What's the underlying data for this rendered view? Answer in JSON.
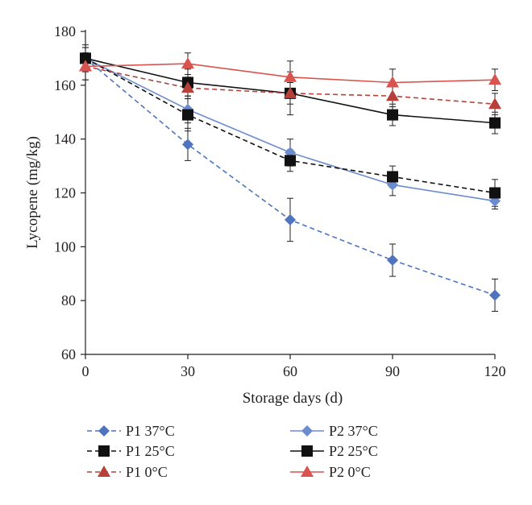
{
  "chart_data": {
    "type": "line",
    "title": "",
    "xlabel": "Storage days (d)",
    "ylabel": "Lycopene (mg/kg)",
    "x": [
      0,
      30,
      60,
      90,
      120
    ],
    "xlim": [
      0,
      120
    ],
    "ylim": [
      60,
      180
    ],
    "xticks": [
      "0",
      "30",
      "60",
      "90",
      "120"
    ],
    "yticks": [
      "60",
      "80",
      "100",
      "120",
      "140",
      "160",
      "180"
    ],
    "grid": false,
    "legend_position": "bottom",
    "series": [
      {
        "name": "P1 37°C",
        "marker": "diamond",
        "line": "dashed",
        "color": "#4f74bd",
        "values": [
          170,
          138,
          110,
          95,
          82
        ],
        "errors": [
          4,
          6,
          8,
          6,
          6
        ]
      },
      {
        "name": "P2 37°C",
        "marker": "diamond",
        "line": "solid",
        "color": "#6b8ccf",
        "values": [
          170,
          151,
          135,
          123,
          117
        ],
        "errors": [
          4,
          5,
          5,
          4,
          3
        ]
      },
      {
        "name": "P1 25°C",
        "marker": "square",
        "line": "dashed",
        "color": "#111111",
        "values": [
          170,
          149,
          132,
          126,
          120
        ],
        "errors": [
          4,
          6,
          4,
          4,
          5
        ]
      },
      {
        "name": "P2 25°C",
        "marker": "square",
        "line": "solid",
        "color": "#111111",
        "values": [
          170,
          161,
          157,
          149,
          146
        ],
        "errors": [
          5,
          5,
          8,
          4,
          4
        ]
      },
      {
        "name": "P1 0°C",
        "marker": "triangle",
        "line": "dashed",
        "color": "#b7403a",
        "values": [
          167,
          159,
          157,
          156,
          153
        ],
        "errors": [
          5,
          4,
          4,
          4,
          4
        ]
      },
      {
        "name": "P2 0°C",
        "marker": "triangle",
        "line": "solid",
        "color": "#d9534f",
        "values": [
          167,
          168,
          163,
          161,
          162
        ],
        "errors": [
          5,
          4,
          6,
          5,
          4
        ]
      }
    ],
    "legend_order": [
      0,
      1,
      2,
      3,
      4,
      5
    ]
  }
}
